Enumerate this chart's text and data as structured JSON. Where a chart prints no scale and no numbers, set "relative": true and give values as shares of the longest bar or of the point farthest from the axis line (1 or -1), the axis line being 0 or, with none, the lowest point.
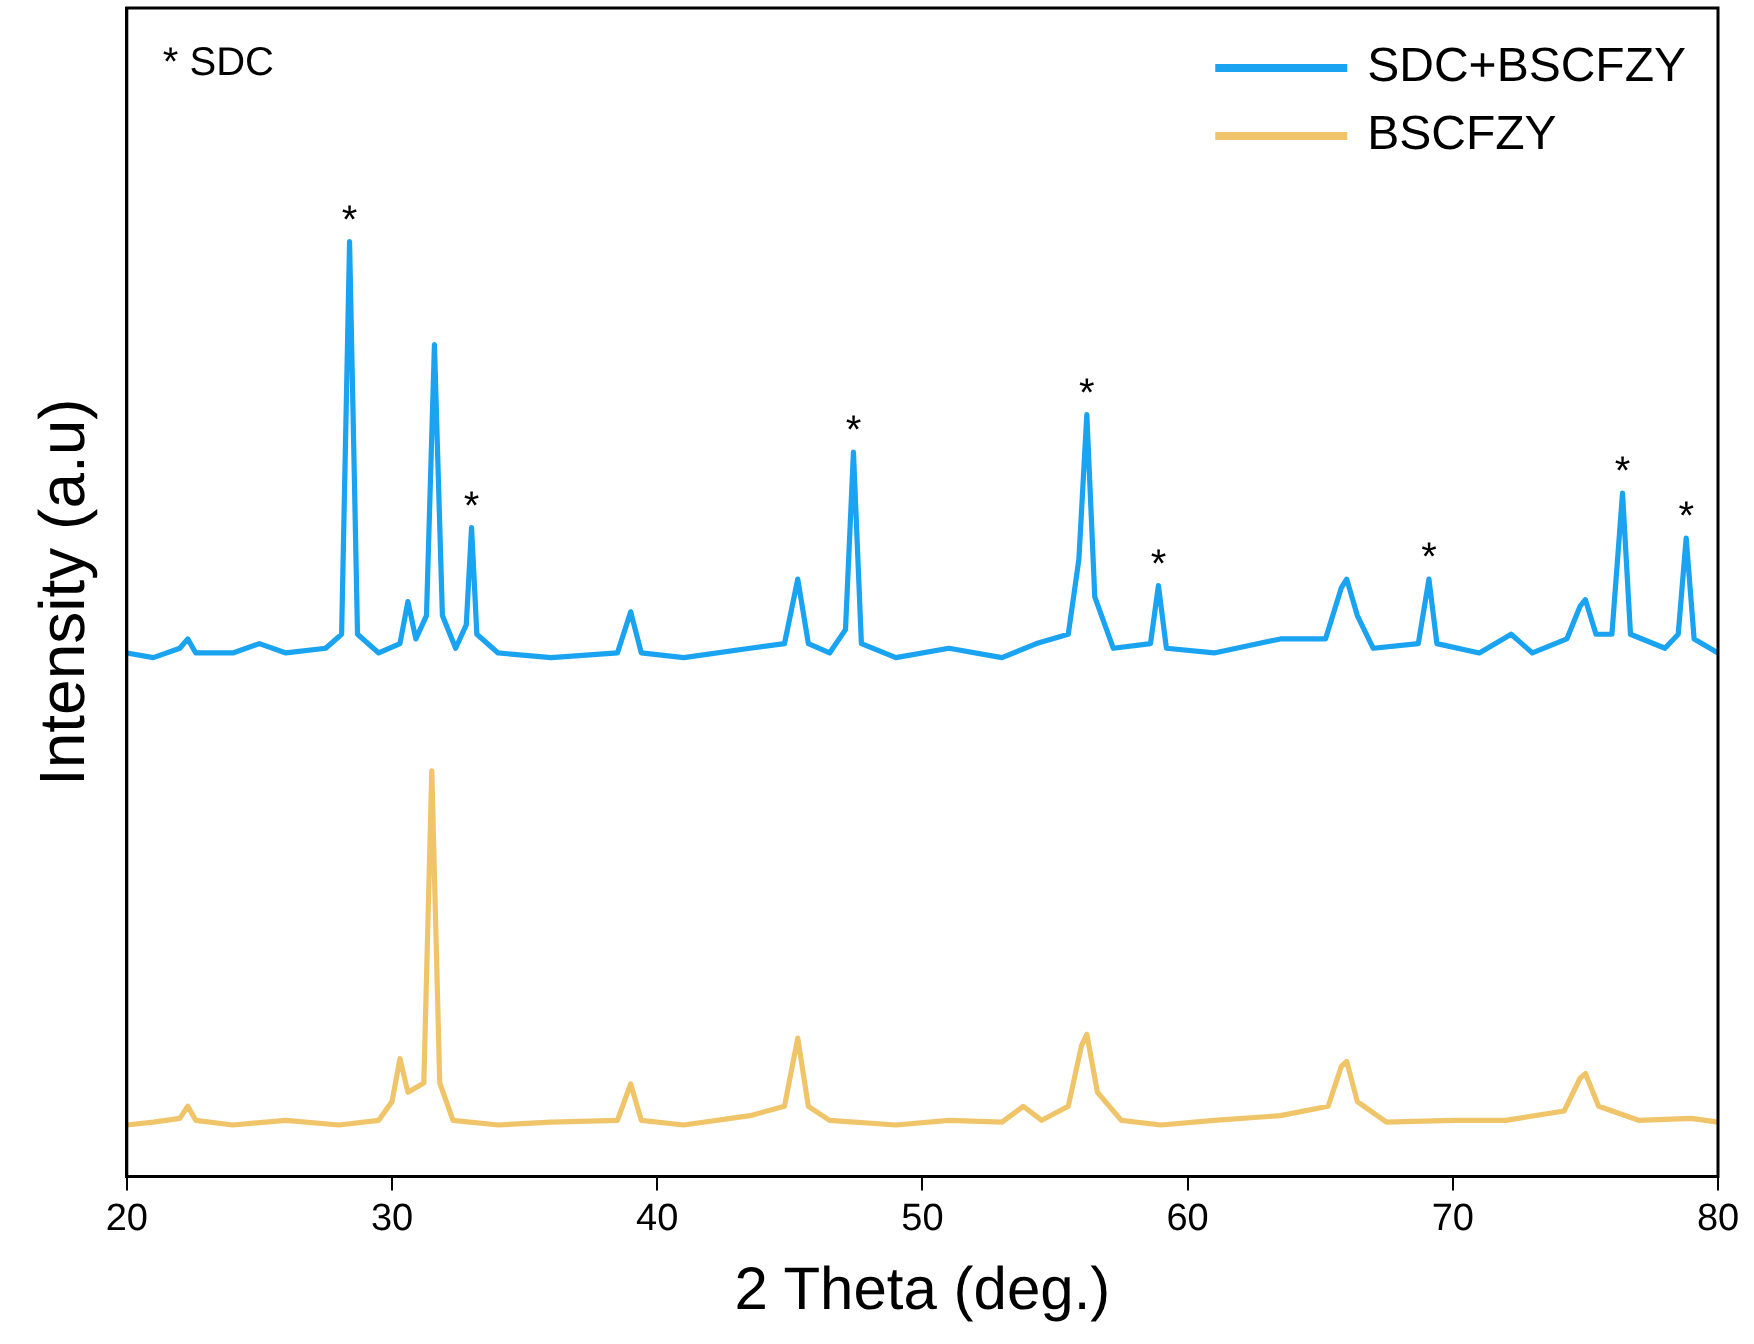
{
  "chart_data": {
    "type": "line",
    "xlabel": "2 Theta (deg.)",
    "ylabel": "Intensity (a.u)",
    "relative": true,
    "xlim": [
      20,
      80
    ],
    "xticks": [
      20,
      30,
      40,
      50,
      60,
      70,
      80
    ],
    "tick_labels": "x",
    "legend": "top right",
    "grid": false,
    "marker": "none",
    "line_style": "solid",
    "annotations": [
      "* SDC",
      {
        "text": "*",
        "x": 28.4,
        "y": 1.0
      },
      {
        "text": "*",
        "x": 33.0,
        "y": 0.694
      },
      {
        "text": "*",
        "x": 47.4,
        "y": 0.775
      },
      {
        "text": "*",
        "x": 56.2,
        "y": 0.815
      },
      {
        "text": "*",
        "x": 58.9,
        "y": 0.632
      },
      {
        "text": "*",
        "x": 69.1,
        "y": 0.639
      },
      {
        "text": "*",
        "x": 76.4,
        "y": 0.731
      },
      {
        "text": "*",
        "x": 78.8,
        "y": 0.683
      }
    ],
    "series": [
      {
        "name": "SDC+BSCFZY",
        "color": "#1aa3f0",
        "x": [
          20,
          21,
          22,
          22.3,
          22.6,
          24,
          25,
          26,
          27.5,
          28.1,
          28.4,
          28.7,
          29.5,
          30.3,
          30.6,
          30.9,
          31.3,
          31.6,
          31.9,
          32.4,
          32.8,
          33.0,
          33.2,
          34,
          36,
          38.5,
          39.0,
          39.4,
          41,
          43.5,
          44.8,
          45.3,
          45.7,
          46.5,
          47.1,
          47.4,
          47.7,
          49,
          51,
          53,
          54.3,
          55.5,
          55.9,
          56.2,
          56.5,
          57.2,
          58.6,
          58.9,
          59.2,
          61,
          63.5,
          65.2,
          65.8,
          66.0,
          66.4,
          67,
          68.7,
          69.1,
          69.4,
          71,
          72.2,
          73,
          74.3,
          74.8,
          75.0,
          75.4,
          76.0,
          76.4,
          76.7,
          78,
          78.5,
          78.8,
          79.1,
          80
        ],
        "values": [
          0.56,
          0.555,
          0.565,
          0.575,
          0.56,
          0.56,
          0.57,
          0.56,
          0.565,
          0.58,
          1.0,
          0.58,
          0.56,
          0.57,
          0.615,
          0.575,
          0.6,
          0.89,
          0.6,
          0.565,
          0.59,
          0.694,
          0.58,
          0.56,
          0.555,
          0.56,
          0.604,
          0.56,
          0.555,
          0.565,
          0.57,
          0.639,
          0.57,
          0.56,
          0.585,
          0.775,
          0.57,
          0.555,
          0.565,
          0.555,
          0.57,
          0.58,
          0.66,
          0.815,
          0.62,
          0.565,
          0.57,
          0.632,
          0.565,
          0.56,
          0.575,
          0.575,
          0.63,
          0.639,
          0.6,
          0.565,
          0.57,
          0.639,
          0.57,
          0.56,
          0.58,
          0.56,
          0.575,
          0.61,
          0.617,
          0.58,
          0.58,
          0.731,
          0.58,
          0.565,
          0.58,
          0.683,
          0.575,
          0.56
        ]
      },
      {
        "name": "BSCFZY",
        "color": "#f0c56a",
        "x": [
          20,
          21,
          22,
          22.3,
          22.6,
          24,
          26,
          28,
          29.5,
          30.0,
          30.3,
          30.6,
          31.2,
          31.5,
          31.8,
          32.3,
          34,
          36,
          38.5,
          39.0,
          39.4,
          41,
          43.5,
          44.8,
          45.3,
          45.7,
          46.5,
          49,
          51,
          53,
          53.8,
          54.5,
          55.5,
          56.0,
          56.2,
          56.6,
          57.5,
          59,
          61,
          63.5,
          65.3,
          65.8,
          66.0,
          66.4,
          67.5,
          70,
          72,
          74.2,
          74.8,
          75.0,
          75.5,
          77,
          79,
          80
        ],
        "values": [
          0.055,
          0.058,
          0.062,
          0.075,
          0.06,
          0.055,
          0.06,
          0.055,
          0.06,
          0.08,
          0.126,
          0.09,
          0.1,
          0.434,
          0.1,
          0.06,
          0.055,
          0.058,
          0.06,
          0.099,
          0.06,
          0.055,
          0.065,
          0.075,
          0.148,
          0.075,
          0.06,
          0.055,
          0.06,
          0.058,
          0.075,
          0.06,
          0.075,
          0.14,
          0.152,
          0.09,
          0.06,
          0.055,
          0.06,
          0.065,
          0.075,
          0.118,
          0.123,
          0.08,
          0.058,
          0.06,
          0.06,
          0.07,
          0.105,
          0.11,
          0.075,
          0.06,
          0.062,
          0.058
        ]
      }
    ]
  }
}
